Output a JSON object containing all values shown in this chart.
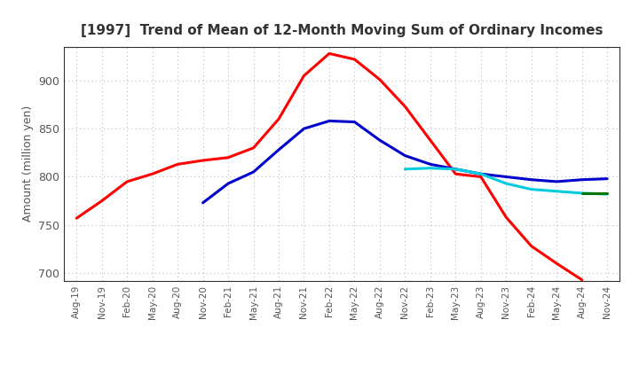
{
  "title": "[1997]  Trend of Mean of 12-Month Moving Sum of Ordinary Incomes",
  "ylabel": "Amount (million yen)",
  "ylim": [
    692,
    935
  ],
  "yticks": [
    700,
    750,
    800,
    850,
    900
  ],
  "background_color": "#ffffff",
  "grid_color": "#bbbbbb",
  "x_labels": [
    "Aug-19",
    "Nov-19",
    "Feb-20",
    "May-20",
    "Aug-20",
    "Nov-20",
    "Feb-21",
    "May-21",
    "Aug-21",
    "Nov-21",
    "Feb-22",
    "May-22",
    "Aug-22",
    "Nov-22",
    "Feb-23",
    "May-23",
    "Aug-23",
    "Nov-23",
    "Feb-24",
    "May-24",
    "Aug-24",
    "Nov-24"
  ],
  "series_3y": [
    757,
    775,
    795,
    803,
    813,
    817,
    820,
    830,
    860,
    905,
    928,
    922,
    901,
    873,
    838,
    803,
    800,
    758,
    728,
    710,
    693,
    null
  ],
  "series_5y": [
    null,
    null,
    null,
    null,
    null,
    773,
    793,
    805,
    828,
    850,
    858,
    857,
    838,
    822,
    813,
    808,
    803,
    800,
    797,
    795,
    797,
    798
  ],
  "series_7y": [
    null,
    null,
    null,
    null,
    null,
    null,
    null,
    null,
    null,
    null,
    null,
    null,
    null,
    808,
    809,
    808,
    803,
    793,
    787,
    785,
    783,
    782
  ],
  "series_10y": [
    null,
    null,
    null,
    null,
    null,
    null,
    null,
    null,
    null,
    null,
    null,
    null,
    null,
    null,
    null,
    null,
    null,
    null,
    null,
    null,
    783,
    783
  ],
  "color_3y": "#ff0000",
  "color_5y": "#0000cc",
  "color_7y": "#00ccdd",
  "color_10y": "#007700",
  "linewidth": 2.2,
  "title_fontsize": 11,
  "title_color": "#333333",
  "tick_color": "#555555",
  "ylabel_fontsize": 9
}
